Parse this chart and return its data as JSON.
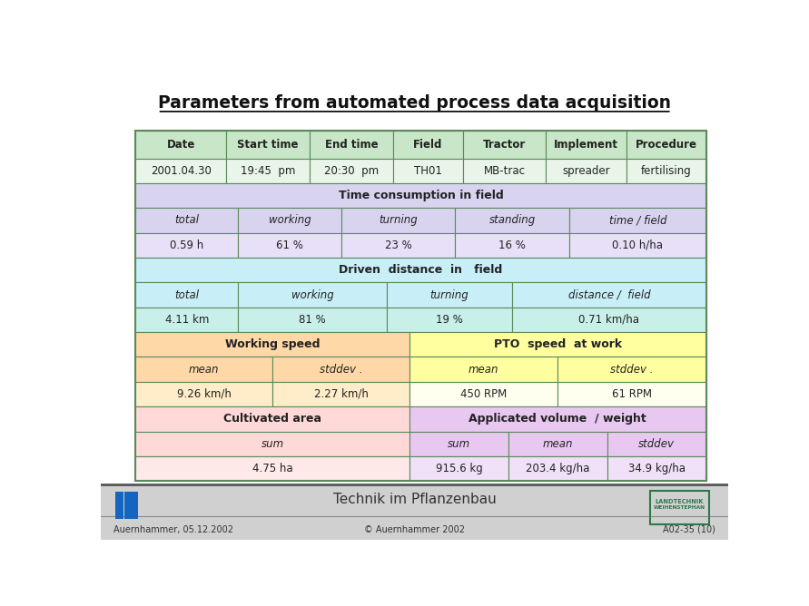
{
  "title": "Parameters from automated process data acquisition",
  "bg_color": "#ffffff",
  "table_border_color": "#5a8a5a",
  "footer_bg": "#cccccc",
  "footer_text": "Technik im Pflanzenbau",
  "footer_left": "Auernhammer, 05.12.2002",
  "footer_center": "© Auernhammer 2002",
  "footer_right": "A02-35 (10)",
  "colors": {
    "header_green": "#c8e6c8",
    "light_green": "#e8f5e8",
    "light_blue": "#c8eef8",
    "light_purple": "#d8d4f0",
    "light_orange": "#ffd8a8",
    "light_yellow": "#ffffa0",
    "light_pink": "#ffd8d8",
    "light_lavender": "#e8e0f8",
    "light_cyan": "#c8f0e8",
    "light_magenta": "#e8c8f0"
  }
}
